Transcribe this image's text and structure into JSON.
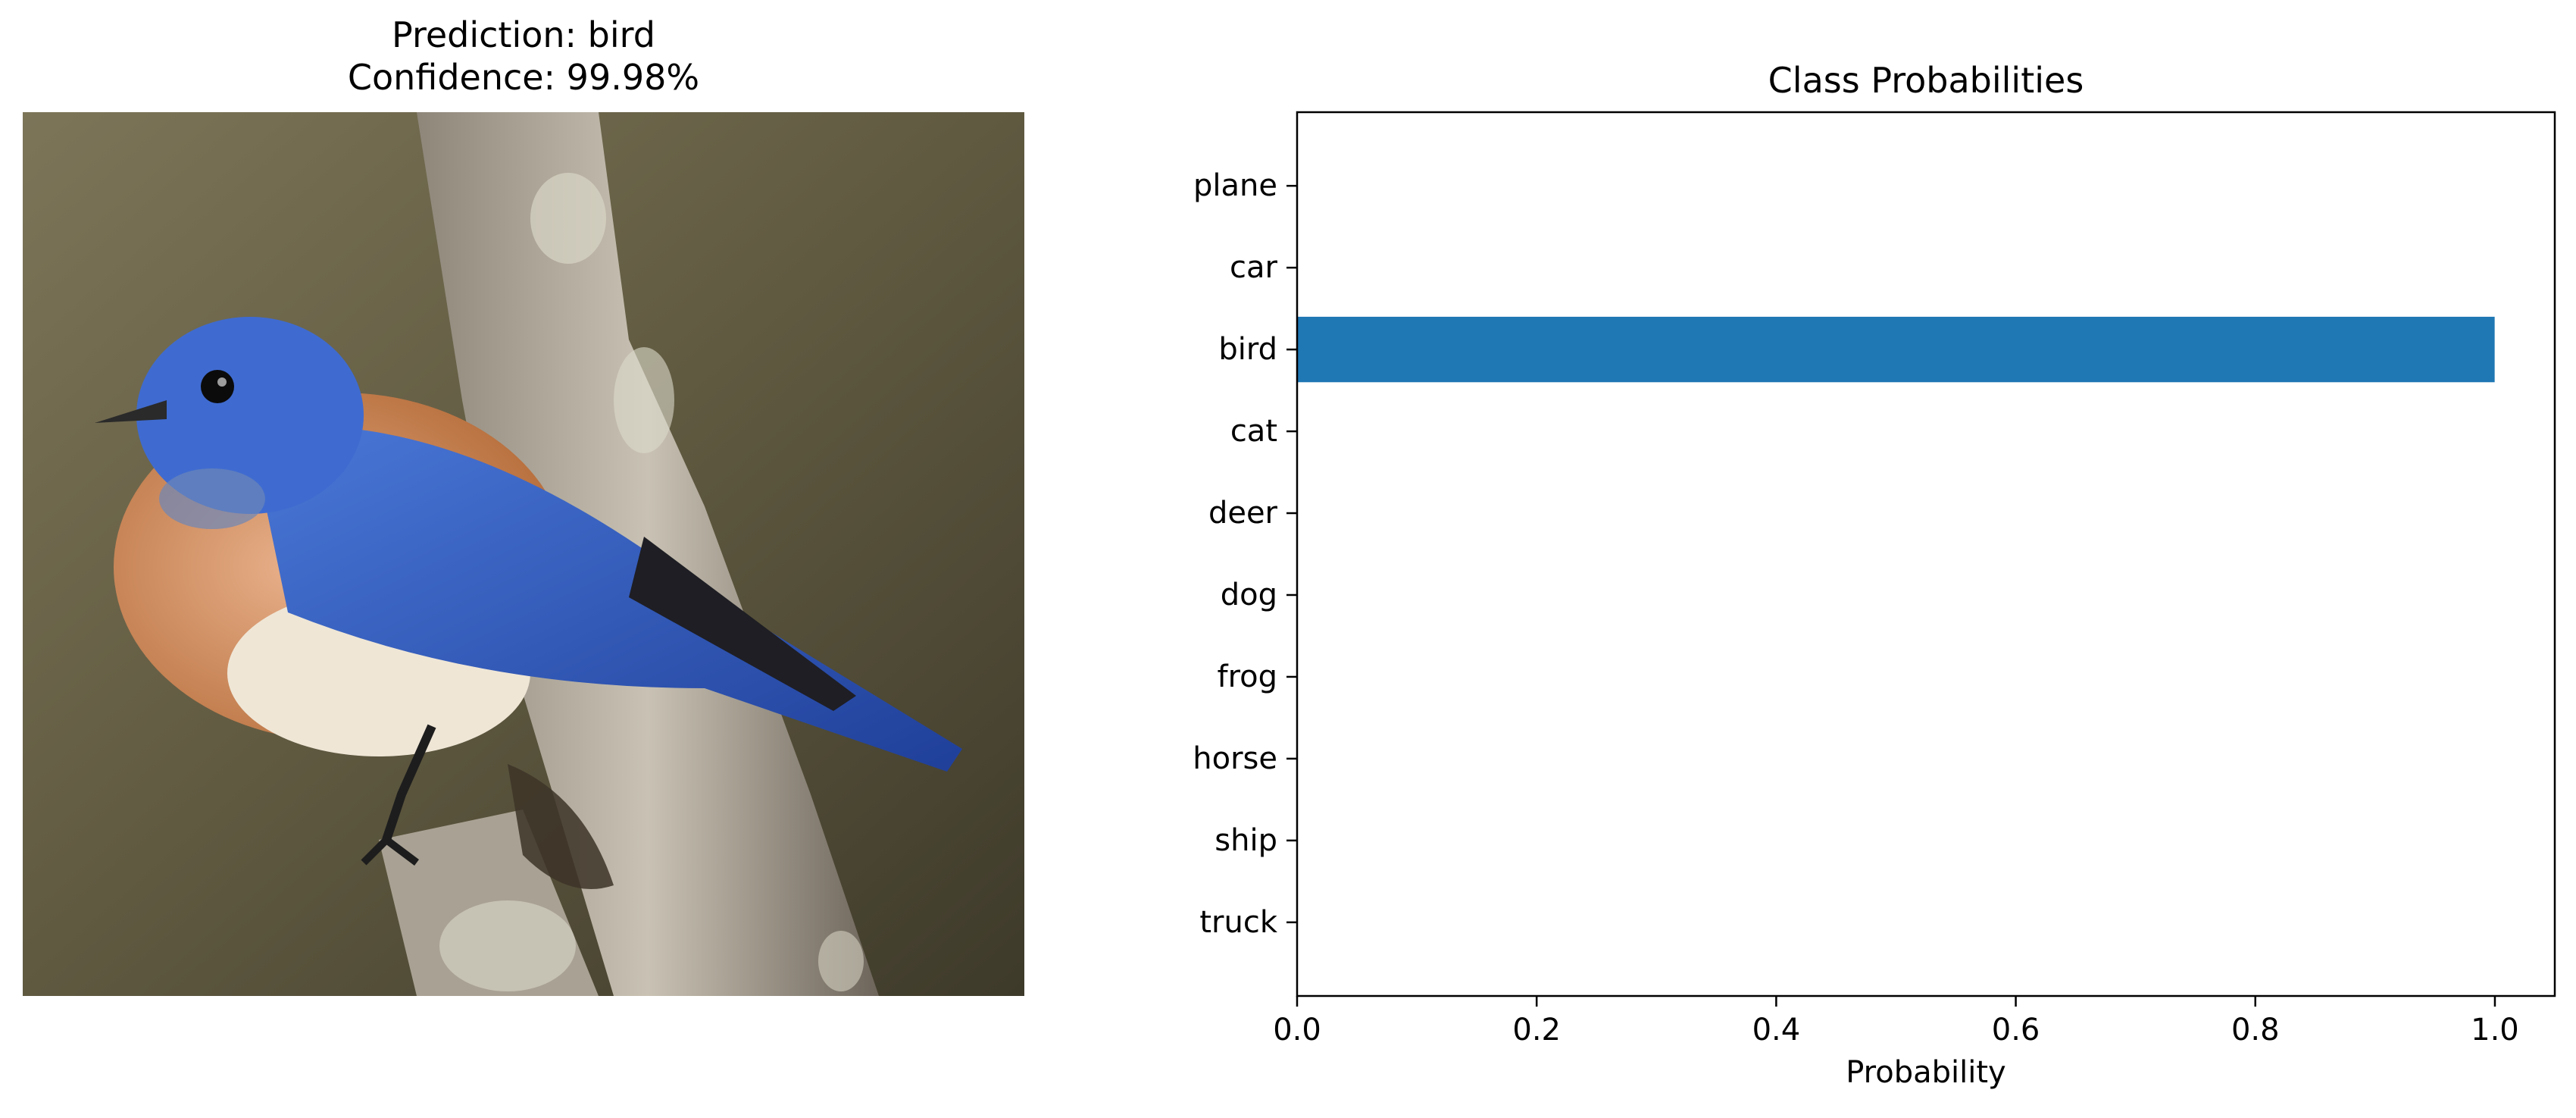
{
  "figure": {
    "left_title_line1": "Prediction: bird",
    "left_title_line2": "Confidence: 99.98%",
    "photo_subject": "eastern bluebird perched on a tree branch",
    "bar_color": "#1f77b4"
  },
  "chart_data": {
    "type": "bar",
    "orientation": "horizontal",
    "title": "Class Probabilities",
    "xlabel": "Probability",
    "ylabel": "",
    "categories": [
      "plane",
      "car",
      "bird",
      "cat",
      "deer",
      "dog",
      "frog",
      "horse",
      "ship",
      "truck"
    ],
    "values": [
      0.0,
      0.0,
      0.9998,
      0.0,
      0.0,
      0.0,
      0.0,
      0.0,
      0.0,
      0.0
    ],
    "xlim": [
      0.0,
      1.05
    ],
    "xticks": [
      "0.0",
      "0.2",
      "0.4",
      "0.6",
      "0.8",
      "1.0"
    ],
    "grid": false,
    "legend": "none"
  }
}
